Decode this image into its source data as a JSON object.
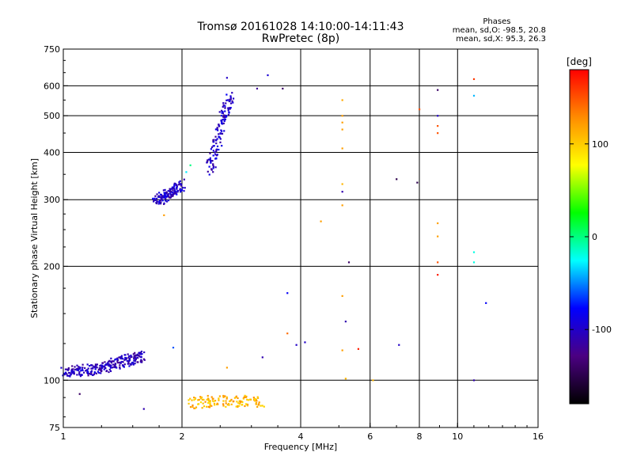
{
  "chart_data": {
    "type": "scatter",
    "title": "Tromsø 20161028 14:10:00-14:11:43",
    "subtitle": "RwPretec (8p)",
    "xlabel": "Frequency [MHz]",
    "ylabel": "Stationary phase Virtual Height [km]",
    "x_scale": "log2",
    "y_scale": "log",
    "xlim": [
      1,
      16
    ],
    "ylim": [
      75,
      750
    ],
    "x_ticks": [
      1,
      2,
      4,
      6,
      8,
      10,
      16
    ],
    "y_ticks": [
      75,
      100,
      200,
      300,
      400,
      500,
      600,
      750
    ],
    "grid": true,
    "phases_header": "Phases",
    "stats": [
      "mean, sd,O:  -98.5,  20.8",
      "mean, sd,X:   95.3,  26.3"
    ],
    "colorbar": {
      "label": "[deg]",
      "range": [
        -180,
        180
      ],
      "ticks": [
        -100,
        0,
        100
      ],
      "colors": [
        "#000000",
        "#4b0082",
        "#0000ff",
        "#00ffff",
        "#00ff00",
        "#ffff00",
        "#ff8c00",
        "#ff0000"
      ]
    },
    "traces": [
      {
        "x": [
          1.0,
          1.1,
          1.2,
          1.3,
          1.4,
          1.5,
          1.6
        ],
        "y": [
          105,
          106,
          107,
          109,
          112,
          114,
          116
        ],
        "phase": -105
      },
      {
        "x": [
          1.72,
          1.8,
          1.9,
          2.0
        ],
        "y": [
          298,
          305,
          315,
          330
        ],
        "phase": -100
      },
      {
        "x": [
          2.35,
          2.45,
          2.55,
          2.65
        ],
        "y": [
          360,
          420,
          500,
          560
        ],
        "phase": -100
      },
      {
        "x": [
          2.1,
          2.4,
          2.8,
          3.2
        ],
        "y": [
          87,
          88,
          88,
          88
        ],
        "phase": 110
      }
    ],
    "points": [
      {
        "x": 2.6,
        "y": 630,
        "phase": -100
      },
      {
        "x": 3.3,
        "y": 640,
        "phase": -95
      },
      {
        "x": 3.6,
        "y": 590,
        "phase": -140
      },
      {
        "x": 5.1,
        "y": 550,
        "phase": 115
      },
      {
        "x": 5.1,
        "y": 500,
        "phase": 120
      },
      {
        "x": 5.1,
        "y": 460,
        "phase": 120
      },
      {
        "x": 5.1,
        "y": 410,
        "phase": 120
      },
      {
        "x": 5.1,
        "y": 330,
        "phase": 110
      },
      {
        "x": 5.1,
        "y": 315,
        "phase": -110
      },
      {
        "x": 5.1,
        "y": 290,
        "phase": 120
      },
      {
        "x": 4.5,
        "y": 263,
        "phase": 120
      },
      {
        "x": 5.3,
        "y": 205,
        "phase": -140
      },
      {
        "x": 3.7,
        "y": 170,
        "phase": -80
      },
      {
        "x": 3.7,
        "y": 133,
        "phase": 140
      },
      {
        "x": 3.9,
        "y": 124,
        "phase": -100
      },
      {
        "x": 4.1,
        "y": 126,
        "phase": -100
      },
      {
        "x": 5.1,
        "y": 167,
        "phase": 120
      },
      {
        "x": 5.2,
        "y": 143,
        "phase": -110
      },
      {
        "x": 5.1,
        "y": 120,
        "phase": 120
      },
      {
        "x": 5.6,
        "y": 121,
        "phase": 170
      },
      {
        "x": 5.2,
        "y": 101,
        "phase": 110
      },
      {
        "x": 7.0,
        "y": 340,
        "phase": -150
      },
      {
        "x": 7.1,
        "y": 124,
        "phase": -100
      },
      {
        "x": 7.9,
        "y": 333,
        "phase": -150
      },
      {
        "x": 8.0,
        "y": 520,
        "phase": 150
      },
      {
        "x": 8.9,
        "y": 585,
        "phase": -140
      },
      {
        "x": 8.9,
        "y": 500,
        "phase": -100
      },
      {
        "x": 8.9,
        "y": 470,
        "phase": 150
      },
      {
        "x": 8.9,
        "y": 450,
        "phase": 150
      },
      {
        "x": 8.9,
        "y": 260,
        "phase": 120
      },
      {
        "x": 8.9,
        "y": 240,
        "phase": 120
      },
      {
        "x": 8.9,
        "y": 205,
        "phase": 150
      },
      {
        "x": 8.9,
        "y": 190,
        "phase": 170
      },
      {
        "x": 11.0,
        "y": 625,
        "phase": 160
      },
      {
        "x": 11.0,
        "y": 565,
        "phase": -40
      },
      {
        "x": 11.0,
        "y": 218,
        "phase": -20
      },
      {
        "x": 11.0,
        "y": 205,
        "phase": -20
      },
      {
        "x": 11.8,
        "y": 160,
        "phase": -80
      },
      {
        "x": 11.0,
        "y": 100,
        "phase": -110
      },
      {
        "x": 1.9,
        "y": 122,
        "phase": -60
      },
      {
        "x": 2.6,
        "y": 108,
        "phase": 120
      },
      {
        "x": 3.2,
        "y": 115,
        "phase": -110
      },
      {
        "x": 1.1,
        "y": 92,
        "phase": -140
      },
      {
        "x": 1.6,
        "y": 84,
        "phase": -110
      },
      {
        "x": 1.8,
        "y": 273,
        "phase": 120
      },
      {
        "x": 2.1,
        "y": 370,
        "phase": 0
      },
      {
        "x": 2.05,
        "y": 355,
        "phase": -30
      },
      {
        "x": 3.1,
        "y": 590,
        "phase": -120
      },
      {
        "x": 6.1,
        "y": 100,
        "phase": 110
      },
      {
        "x": 5.1,
        "y": 480,
        "phase": 120
      }
    ]
  }
}
